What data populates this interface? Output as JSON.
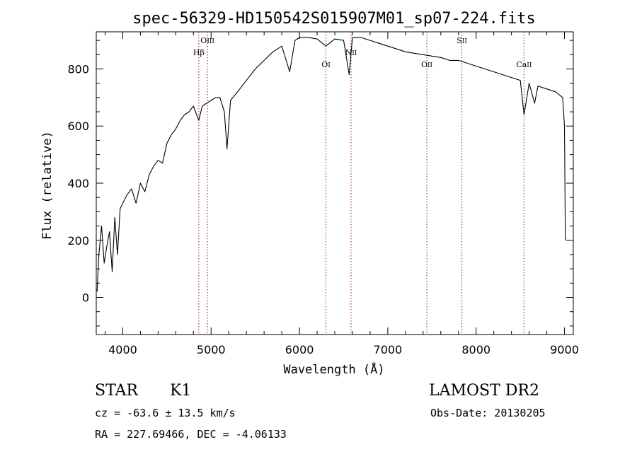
{
  "chart_data": {
    "type": "line",
    "title": "spec-56329-HD150542S015907M01_sp07-224.fits",
    "xlabel": "Wavelength (Å)",
    "ylabel": "Flux (relative)",
    "xlim": [
      3700,
      9100
    ],
    "ylim": [
      -130,
      930
    ],
    "xticks": [
      4000,
      5000,
      6000,
      7000,
      8000,
      9000
    ],
    "yticks": [
      0,
      200,
      400,
      600,
      800
    ],
    "grid": false,
    "series": [
      {
        "color": "#000000",
        "x": [
          3710,
          3730,
          3760,
          3790,
          3820,
          3850,
          3880,
          3910,
          3940,
          3970,
          4000,
          4050,
          4100,
          4150,
          4200,
          4250,
          4300,
          4350,
          4400,
          4450,
          4500,
          4550,
          4600,
          4650,
          4700,
          4750,
          4800,
          4860,
          4900,
          4950,
          5000,
          5050,
          5100,
          5150,
          5180,
          5220,
          5300,
          5400,
          5500,
          5600,
          5700,
          5800,
          5890,
          5950,
          6000,
          6100,
          6200,
          6300,
          6400,
          6500,
          6563,
          6600,
          6700,
          6800,
          6900,
          7000,
          7100,
          7200,
          7300,
          7400,
          7500,
          7600,
          7700,
          7800,
          7900,
          8000,
          8100,
          8200,
          8300,
          8400,
          8500,
          8542,
          8600,
          8662,
          8700,
          8800,
          8900,
          8980,
          9000,
          9010
        ],
        "y": [
          20,
          150,
          250,
          120,
          180,
          230,
          90,
          280,
          150,
          310,
          330,
          360,
          380,
          330,
          400,
          370,
          430,
          460,
          480,
          470,
          540,
          570,
          590,
          620,
          640,
          650,
          670,
          620,
          670,
          680,
          690,
          700,
          700,
          650,
          520,
          690,
          720,
          760,
          800,
          830,
          860,
          880,
          790,
          900,
          910,
          910,
          905,
          880,
          905,
          900,
          780,
          910,
          910,
          900,
          890,
          880,
          870,
          860,
          855,
          850,
          845,
          840,
          830,
          830,
          820,
          810,
          800,
          790,
          780,
          770,
          760,
          640,
          750,
          680,
          740,
          730,
          720,
          700,
          600,
          200
        ]
      }
    ],
    "lines": [
      {
        "label_main": "H",
        "label_sub": "β",
        "x": 4861,
        "label_row": 2
      },
      {
        "label_main": "O",
        "label_sub": "III",
        "x": 4959,
        "label_row": 1
      },
      {
        "label_main": "O",
        "label_sub": "I",
        "x": 6300,
        "label_row": 3
      },
      {
        "label_main": "N",
        "label_sub": "II",
        "x": 6584,
        "label_row": 2
      },
      {
        "label_main": "O",
        "label_sub": "II",
        "x": 7442,
        "label_row": 3
      },
      {
        "label_main": "S",
        "label_sub": "II",
        "x": 7839,
        "label_row": 1
      },
      {
        "label_main": "Ca",
        "label_sub": "II",
        "x": 8542,
        "label_row": 3
      }
    ],
    "colors": {
      "axis": "#000000",
      "line_marker": "#8b1a1a"
    }
  },
  "info": {
    "object_class": "STAR",
    "subclass": "K1",
    "cz": "cz = -63.6 ± 13.5 km/s",
    "radec": "RA = 227.69466, DEC =  -4.06133",
    "survey": "LAMOST DR2",
    "obs_date": "Obs-Date: 20130205"
  }
}
